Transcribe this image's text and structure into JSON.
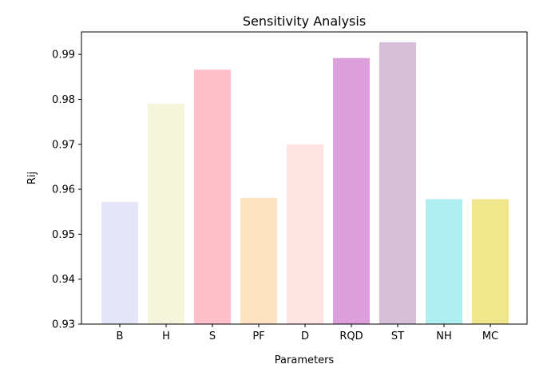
{
  "chart_data": {
    "type": "bar",
    "title": "Sensitivity Analysis",
    "xlabel": "Parameters",
    "ylabel": "Rij",
    "categories": [
      "B",
      "H",
      "S",
      "PF",
      "D",
      "RQD",
      "ST",
      "NH",
      "MC"
    ],
    "values": [
      0.9572,
      0.979,
      0.9866,
      0.9581,
      0.97,
      0.9892,
      0.9927,
      0.9578,
      0.9578
    ],
    "colors": [
      "#e6e6fa",
      "#f5f5dc",
      "#ffc0cb",
      "#ffe4c4",
      "#ffe4e1",
      "#dda0dd",
      "#d8bfd8",
      "#afeeee",
      "#f0e68c"
    ],
    "ylim": [
      0.93,
      0.995
    ],
    "yticks": [
      0.93,
      0.94,
      0.95,
      0.96,
      0.97,
      0.98,
      0.99
    ],
    "ytick_labels": [
      "0.93",
      "0.94",
      "0.95",
      "0.96",
      "0.97",
      "0.98",
      "0.99"
    ],
    "grid": false,
    "legend": "none"
  }
}
